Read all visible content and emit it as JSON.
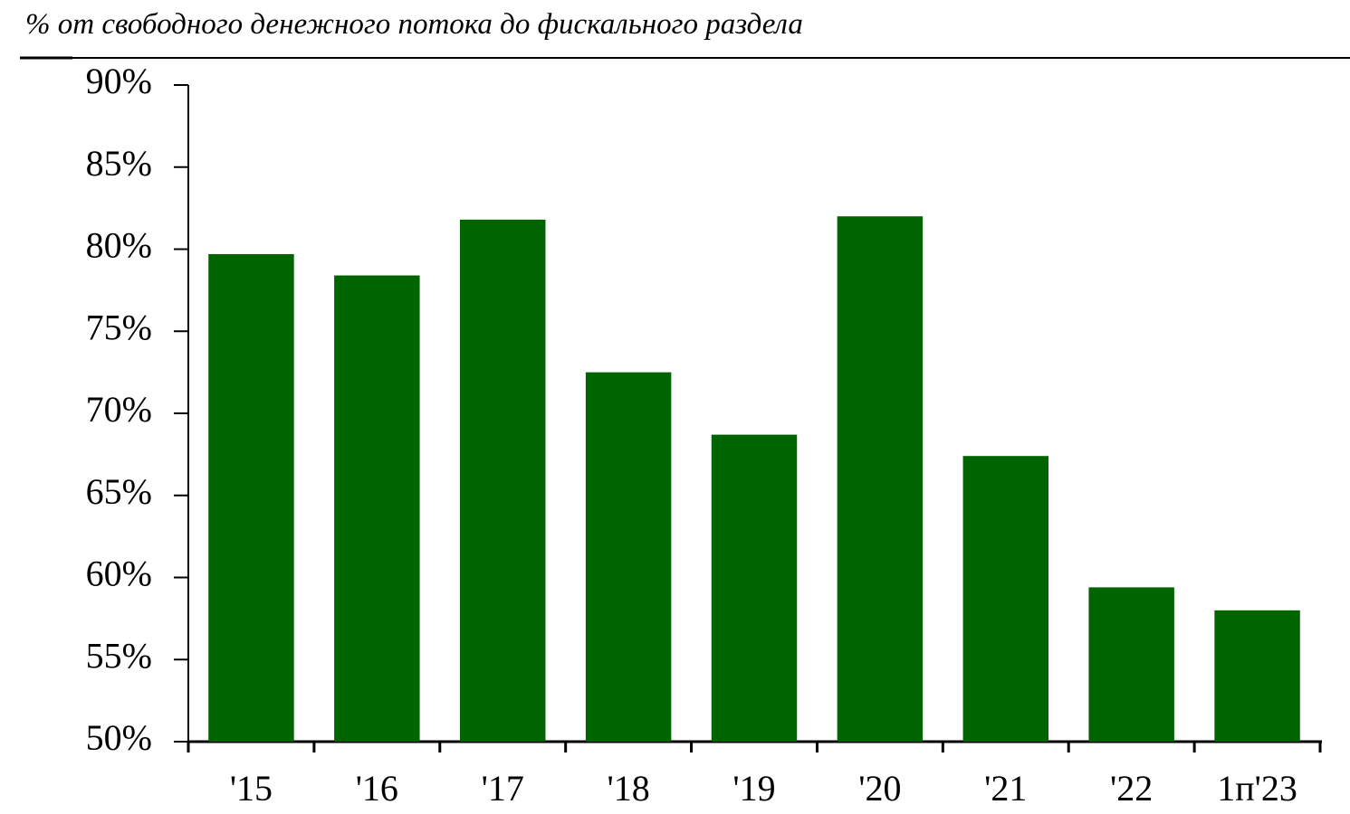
{
  "chart_data": {
    "type": "bar",
    "subtitle": "% от свободного денежного потока до фискального раздела",
    "categories": [
      "'15",
      "'16",
      "'17",
      "'18",
      "'19",
      "'20",
      "'21",
      "'22",
      "1п'23"
    ],
    "values": [
      79.7,
      78.4,
      81.8,
      72.5,
      68.7,
      82.0,
      67.4,
      59.4,
      58.0
    ],
    "color": "#006400",
    "ylim": [
      50,
      90
    ],
    "yticks": [
      {
        "value": 50,
        "label": "50%"
      },
      {
        "value": 55,
        "label": "55%"
      },
      {
        "value": 60,
        "label": "60%"
      },
      {
        "value": 65,
        "label": "65%"
      },
      {
        "value": 70,
        "label": "70%"
      },
      {
        "value": 75,
        "label": "75%"
      },
      {
        "value": 80,
        "label": "80%"
      },
      {
        "value": 85,
        "label": "85%"
      },
      {
        "value": 90,
        "label": "90%"
      }
    ],
    "grid": false
  }
}
